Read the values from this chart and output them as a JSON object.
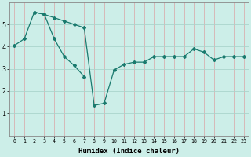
{
  "xlabel": "Humidex (Indice chaleur)",
  "background_color": "#cceee8",
  "grid_color_v": "#d8b0b0",
  "grid_color_h": "#aad4cc",
  "line_color": "#1a7a6e",
  "line1_x": [
    0,
    1,
    2,
    3,
    4,
    5,
    6,
    7
  ],
  "line1_y": [
    4.05,
    4.35,
    5.55,
    5.45,
    4.35,
    3.55,
    3.15,
    2.65
  ],
  "line2_x": [
    2,
    3,
    4,
    5,
    6,
    7,
    8,
    9,
    10,
    11,
    12,
    13,
    14,
    15,
    16,
    17,
    18,
    19,
    20,
    21,
    22,
    23
  ],
  "line2_y": [
    5.55,
    5.45,
    5.3,
    5.15,
    5.0,
    4.85,
    1.35,
    1.45,
    2.95,
    3.2,
    3.3,
    3.3,
    3.55,
    3.55,
    3.55,
    3.55,
    3.9,
    3.75,
    3.4,
    3.55,
    3.55,
    3.55
  ],
  "ylim": [
    0,
    6
  ],
  "xlim": [
    -0.5,
    23.5
  ],
  "yticks": [
    1,
    2,
    3,
    4,
    5
  ],
  "xticks": [
    0,
    1,
    2,
    3,
    4,
    5,
    6,
    7,
    8,
    9,
    10,
    11,
    12,
    13,
    14,
    15,
    16,
    17,
    18,
    19,
    20,
    21,
    22,
    23
  ]
}
